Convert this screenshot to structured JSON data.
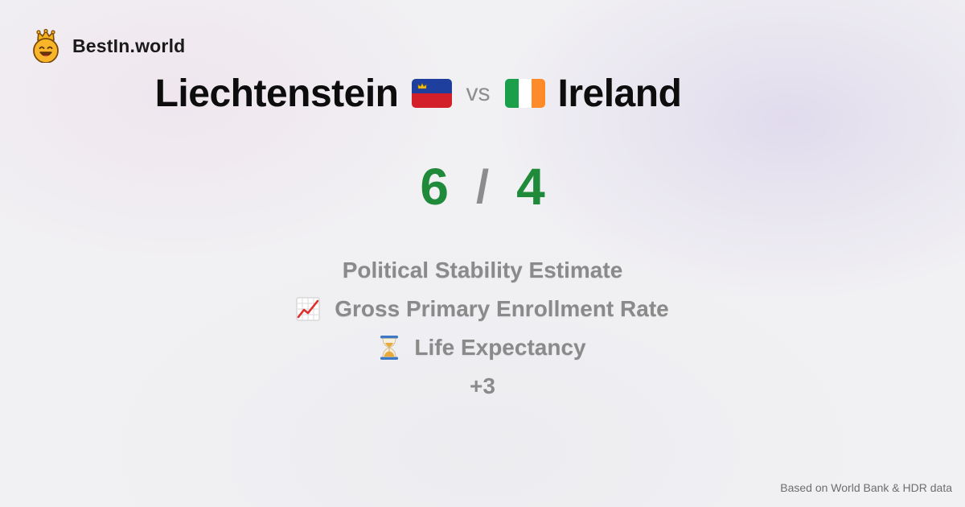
{
  "brand": {
    "name": "BestIn.world",
    "logo_icon": "crowned-smiley-icon"
  },
  "comparison": {
    "left_country": "Liechtenstein",
    "left_flag_icon": "liechtenstein-flag-icon",
    "vs_label": "vs",
    "right_country": "Ireland",
    "right_flag_icon": "ireland-flag-icon"
  },
  "score": {
    "left": "6",
    "separator": "/",
    "right": "4",
    "color": "#1f8a3a"
  },
  "metrics": [
    {
      "label": "Political Stability Estimate",
      "icon": ""
    },
    {
      "label": "Gross Primary Enrollment Rate",
      "icon": "chart-increasing-icon"
    },
    {
      "label": "Life Expectancy",
      "icon": "hourglass-icon"
    }
  ],
  "more_count": "+3",
  "footer": {
    "source": "Based on World Bank & HDR data"
  }
}
